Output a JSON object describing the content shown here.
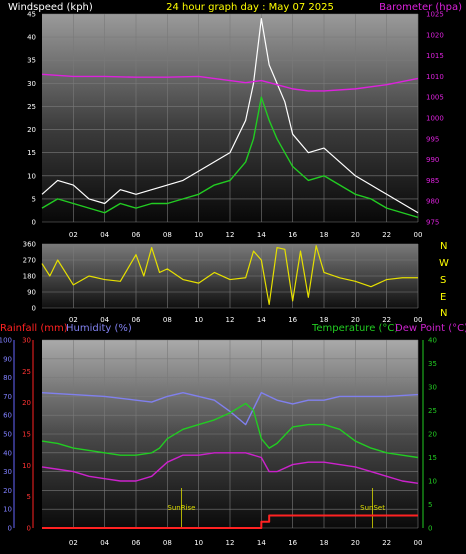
{
  "header": {
    "left": "Windspeed (kph)",
    "center": "24 hour graph day : May 07 2025",
    "right": "Barometer (hpa)"
  },
  "panel3_labels": {
    "rainfall": "Rainfall (mm)",
    "humidity": "Humidity (%)",
    "temperature": "Temperature (°C)",
    "dewpoint": "Dew Point (°C)",
    "sunrise": "SunRise",
    "sunset": "SunSet"
  },
  "colors": {
    "windspeed": "#ffffff",
    "wind_avg": "#22cc22",
    "barometer": "#dd22dd",
    "direction": "#e6e000",
    "rainfall": "#ff2222",
    "humidity": "#8080ee",
    "temperature": "#22cc22",
    "dewpoint": "#cc22cc",
    "sun": "#d8d800"
  },
  "chart_data": [
    {
      "type": "line",
      "x_ticks": [
        "02",
        "04",
        "06",
        "08",
        "10",
        "12",
        "14",
        "16",
        "18",
        "20",
        "22",
        "00"
      ],
      "ylim_left": [
        0,
        45
      ],
      "y_ticks_left": [
        0,
        5,
        10,
        15,
        20,
        25,
        30,
        35,
        40,
        45
      ],
      "ylim_right": [
        975,
        1025
      ],
      "y_ticks_right": [
        975,
        980,
        985,
        990,
        995,
        1000,
        1005,
        1010,
        1015,
        1020,
        1025
      ],
      "series": [
        {
          "key": "windspeed",
          "axis": "left",
          "x": [
            0,
            1,
            2,
            3,
            4,
            5,
            6,
            7,
            8,
            9,
            10,
            11,
            12,
            13,
            13.5,
            14,
            14.5,
            15,
            15.5,
            16,
            17,
            18,
            19,
            20,
            21,
            22,
            23,
            24
          ],
          "values": [
            6,
            9,
            8,
            5,
            4,
            7,
            6,
            7,
            8,
            9,
            11,
            13,
            15,
            22,
            30,
            44,
            34,
            30,
            26,
            19,
            15,
            16,
            13,
            10,
            8,
            6,
            4,
            2
          ]
        },
        {
          "key": "wind_avg",
          "axis": "left",
          "x": [
            0,
            1,
            2,
            3,
            4,
            5,
            6,
            7,
            8,
            9,
            10,
            11,
            12,
            13,
            13.5,
            14,
            14.5,
            15,
            15.5,
            16,
            17,
            18,
            19,
            20,
            21,
            22,
            23,
            24
          ],
          "values": [
            3,
            5,
            4,
            3,
            2,
            4,
            3,
            4,
            4,
            5,
            6,
            8,
            9,
            13,
            18,
            27,
            22,
            18,
            15,
            12,
            9,
            10,
            8,
            6,
            5,
            3,
            2,
            1
          ]
        },
        {
          "key": "barometer",
          "axis": "right",
          "x": [
            0,
            2,
            4,
            6,
            8,
            10,
            12,
            13,
            14,
            15,
            16,
            17,
            18,
            20,
            22,
            24
          ],
          "values": [
            1010.5,
            1010,
            1010,
            1009.8,
            1009.8,
            1010,
            1009,
            1008.5,
            1009,
            1008,
            1007,
            1006.5,
            1006.5,
            1007,
            1008,
            1009.5
          ]
        }
      ]
    },
    {
      "type": "line",
      "x_ticks": [
        "02",
        "04",
        "06",
        "08",
        "10",
        "12",
        "14",
        "16",
        "18",
        "20",
        "22",
        "00"
      ],
      "ylim": [
        0,
        360
      ],
      "y_ticks": [
        0,
        90,
        180,
        270,
        360
      ],
      "compass": [
        "N",
        "W",
        "S",
        "E",
        "N"
      ],
      "series": [
        {
          "key": "direction",
          "x": [
            0,
            0.5,
            1,
            1.5,
            2,
            3,
            4,
            5,
            6,
            6.5,
            7,
            7.5,
            8,
            9,
            10,
            11,
            12,
            13,
            13.5,
            14,
            14.5,
            15,
            15.5,
            16,
            16.5,
            17,
            17.5,
            18,
            19,
            20,
            21,
            22,
            23,
            24
          ],
          "values": [
            250,
            180,
            270,
            200,
            130,
            180,
            160,
            150,
            300,
            180,
            340,
            200,
            220,
            160,
            140,
            200,
            160,
            170,
            320,
            270,
            20,
            340,
            330,
            40,
            320,
            60,
            350,
            200,
            170,
            150,
            120,
            160,
            170,
            170
          ]
        }
      ]
    },
    {
      "type": "line",
      "x_ticks": [
        "02",
        "04",
        "06",
        "08",
        "10",
        "12",
        "14",
        "16",
        "18",
        "20",
        "22",
        "00"
      ],
      "ylim_left": [
        0,
        30
      ],
      "y_ticks_left": [
        0,
        5,
        10,
        15,
        20,
        25,
        30
      ],
      "ylim_humidity": [
        0,
        100
      ],
      "y_ticks_humidity": [
        0,
        10,
        20,
        30,
        40,
        50,
        60,
        70,
        80,
        90,
        100
      ],
      "ylim_right": [
        0,
        40
      ],
      "y_ticks_right": [
        0,
        5,
        10,
        15,
        20,
        25,
        30,
        35,
        40
      ],
      "series": [
        {
          "key": "humidity",
          "axis": "humidity",
          "x": [
            0,
            2,
            4,
            6,
            7,
            8,
            9,
            10,
            11,
            12,
            13,
            14,
            15,
            16,
            17,
            18,
            19,
            20,
            22,
            24
          ],
          "values": [
            72,
            71,
            70,
            68,
            67,
            70,
            72,
            70,
            68,
            62,
            55,
            72,
            68,
            66,
            68,
            68,
            70,
            70,
            70,
            71
          ]
        },
        {
          "key": "temperature",
          "axis": "right",
          "x": [
            0,
            1,
            2,
            3,
            4,
            5,
            6,
            7,
            7.5,
            8,
            9,
            10,
            11,
            12,
            13,
            13.5,
            14,
            14.5,
            15,
            16,
            17,
            18,
            19,
            20,
            21,
            22,
            23,
            24
          ],
          "values": [
            18.5,
            18,
            17,
            16.5,
            16,
            15.5,
            15.5,
            16,
            17,
            19,
            21,
            22,
            23,
            24.5,
            26.5,
            25,
            19,
            17,
            18,
            21.5,
            22,
            22,
            21,
            18.5,
            17,
            16,
            15.5,
            15
          ]
        },
        {
          "key": "dewpoint",
          "axis": "right",
          "x": [
            0,
            1,
            2,
            3,
            4,
            5,
            6,
            7,
            8,
            9,
            10,
            11,
            12,
            13,
            14,
            14.5,
            15,
            16,
            17,
            18,
            19,
            20,
            21,
            22,
            23,
            24
          ],
          "values": [
            13,
            12.5,
            12,
            11,
            10.5,
            10,
            10,
            11,
            14,
            15.5,
            15.5,
            16,
            16,
            16,
            15,
            12,
            12,
            13.5,
            14,
            14,
            13.5,
            13,
            12,
            11,
            10,
            9.5
          ]
        },
        {
          "key": "rainfall",
          "axis": "left",
          "x": [
            0,
            13.9,
            14,
            14.4,
            14.5,
            24
          ],
          "values": [
            0,
            0,
            1,
            1,
            2,
            2
          ]
        }
      ],
      "sunrise_hour": 8.9,
      "sunset_hour": 21.1
    }
  ]
}
